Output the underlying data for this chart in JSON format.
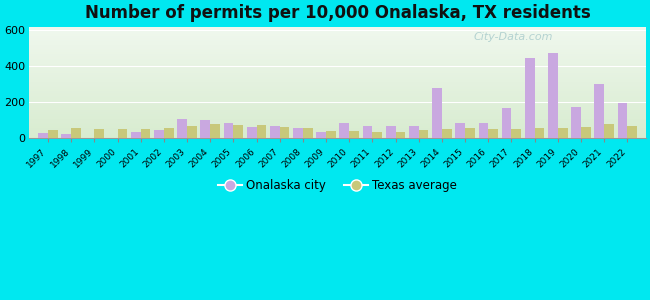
{
  "title": "Number of permits per 10,000 Onalaska, TX residents",
  "years": [
    1997,
    1998,
    1999,
    2000,
    2001,
    2002,
    2003,
    2004,
    2005,
    2006,
    2007,
    2008,
    2009,
    2010,
    2011,
    2012,
    2013,
    2014,
    2015,
    2016,
    2017,
    2018,
    2019,
    2020,
    2021,
    2022
  ],
  "city_values": [
    25,
    20,
    0,
    0,
    30,
    45,
    105,
    100,
    85,
    60,
    65,
    55,
    30,
    85,
    65,
    65,
    65,
    280,
    80,
    80,
    165,
    445,
    475,
    170,
    300,
    195
  ],
  "texas_values": [
    42,
    52,
    47,
    47,
    50,
    52,
    68,
    75,
    72,
    72,
    60,
    57,
    40,
    36,
    32,
    32,
    42,
    50,
    52,
    48,
    48,
    52,
    57,
    62,
    75,
    65
  ],
  "city_color": "#c9a8e0",
  "texas_color": "#c8c87a",
  "ylim": [
    0,
    620
  ],
  "yticks": [
    0,
    200,
    400,
    600
  ],
  "outer_bg": "#00e8f0",
  "plot_bg_top": "#f0f8ee",
  "plot_bg_bottom": "#d8ecd0",
  "title_fontsize": 12,
  "legend_city": "Onalaska city",
  "legend_texas": "Texas average",
  "watermark": "City-Data.com"
}
